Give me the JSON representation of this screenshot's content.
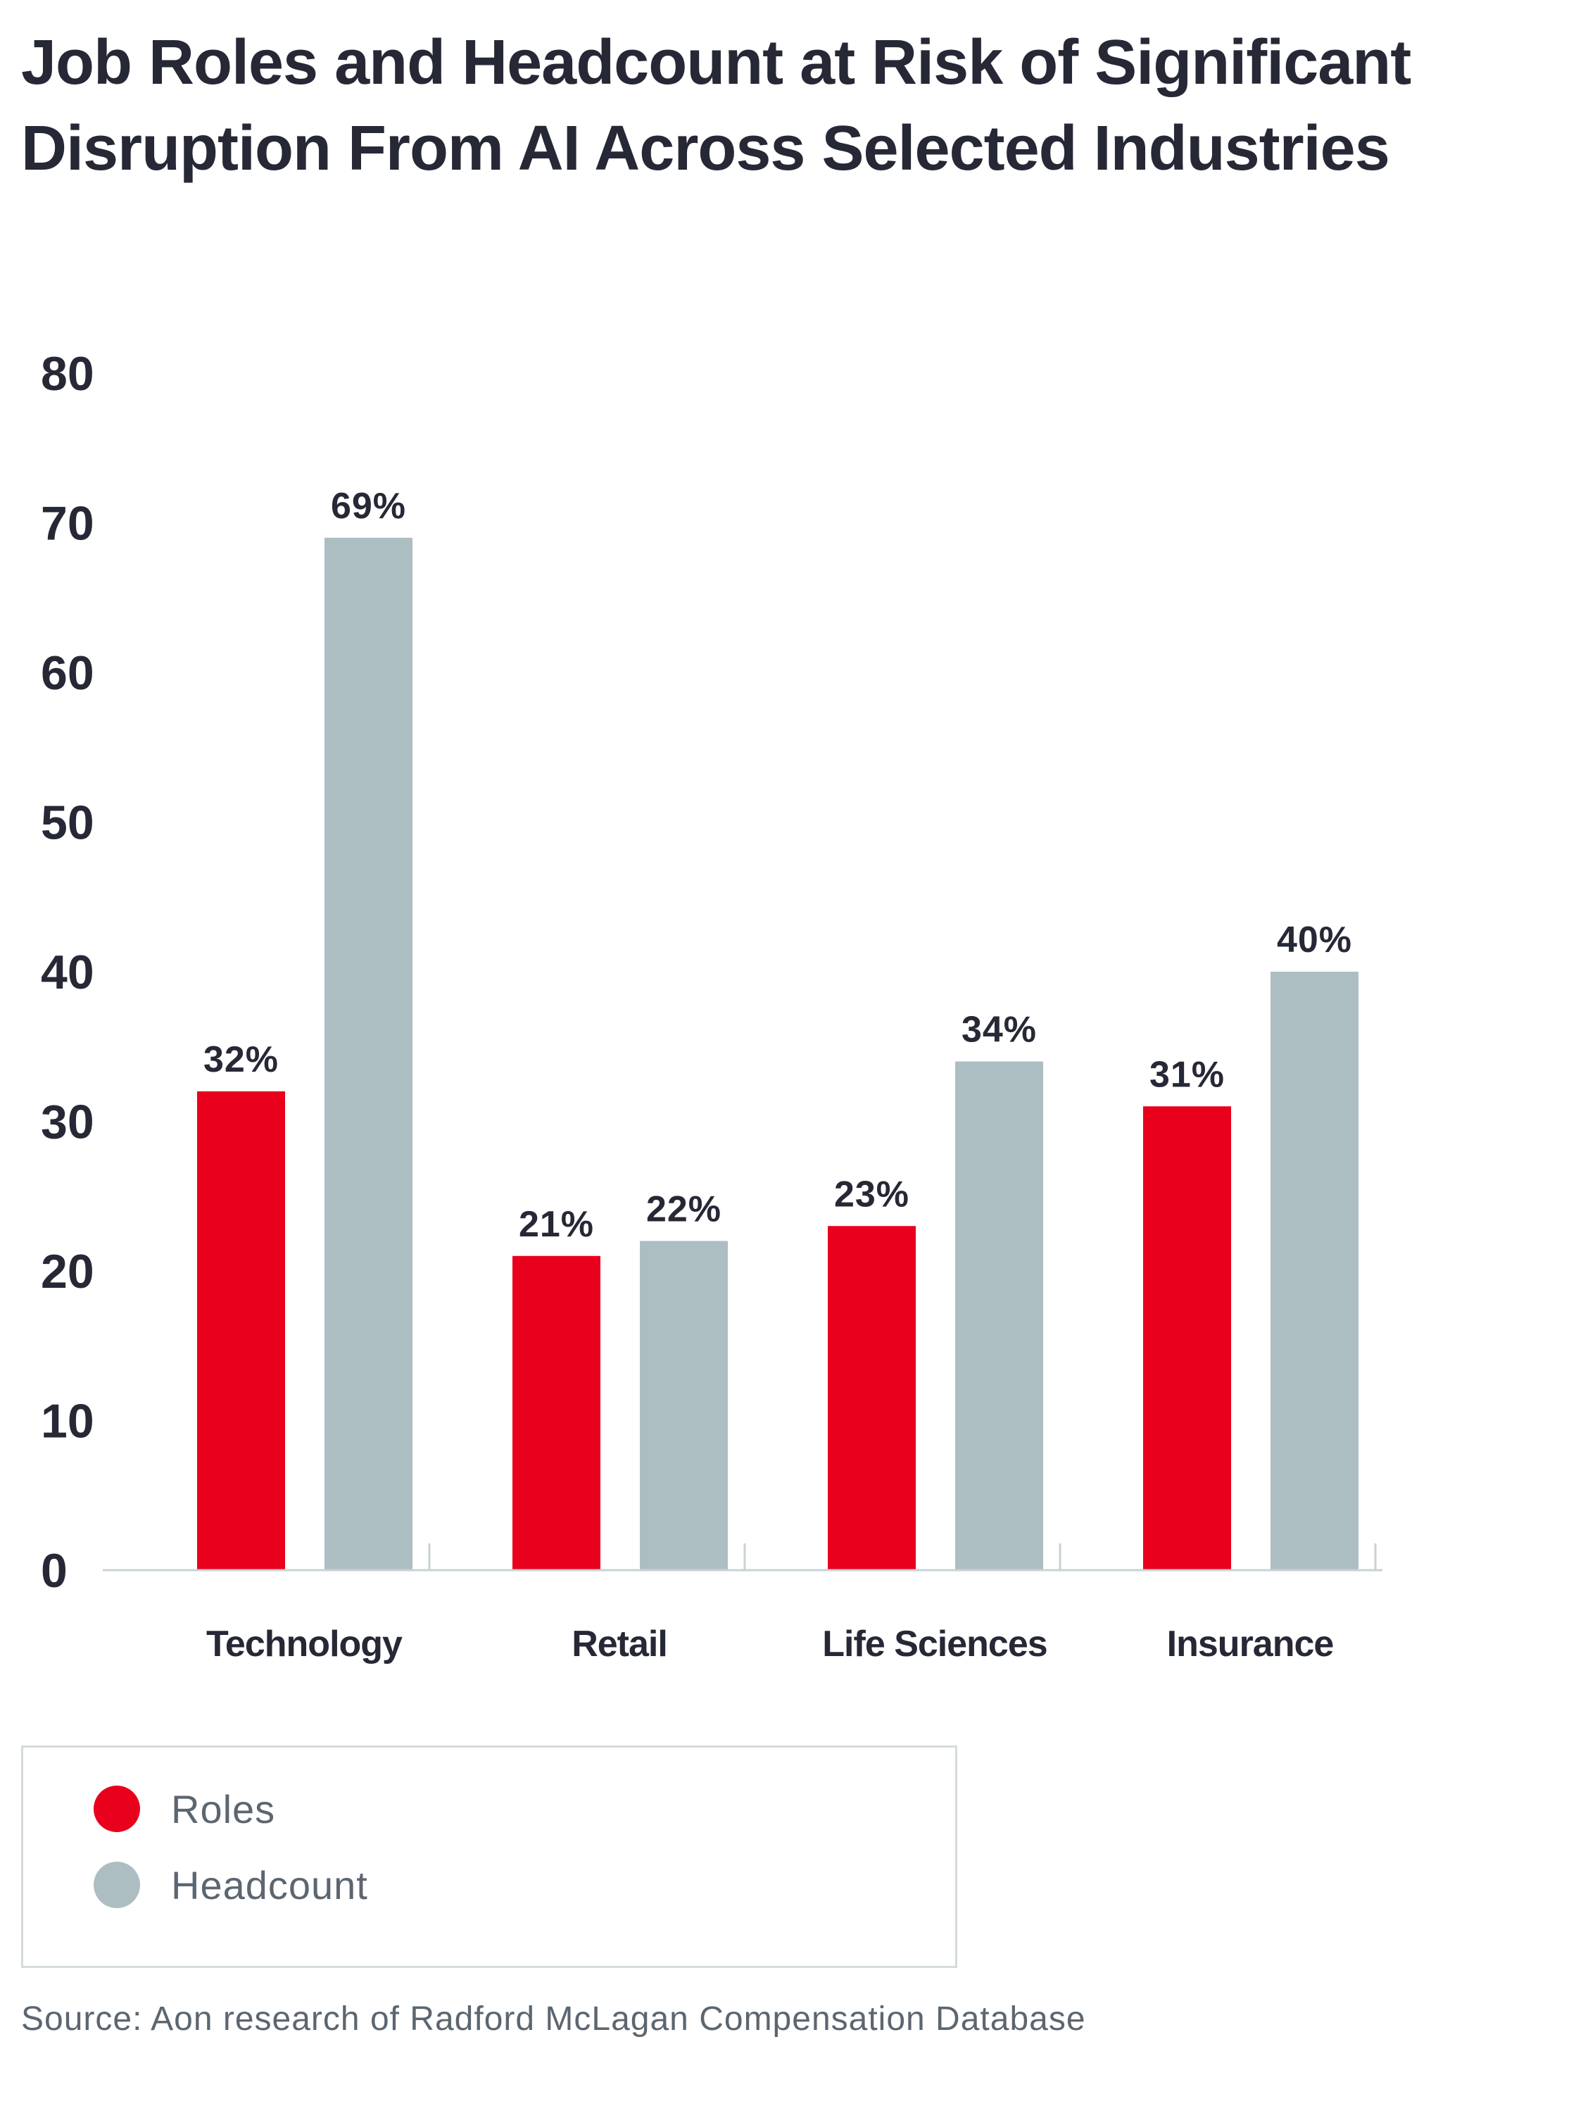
{
  "title": "Job Roles and Headcount at Risk of Significant Disruption From AI Across Selected Industries",
  "source": "Source: Aon research of Radford McLagan Compensation Database",
  "colors": {
    "roles": "#e8001c",
    "headcount": "#adbec2",
    "axis": "#c9d2d5",
    "text": "#262836"
  },
  "legend": {
    "items": [
      {
        "label": "Roles",
        "color": "#e8001c"
      },
      {
        "label": "Headcount",
        "color": "#adbec2"
      }
    ]
  },
  "chart_data": {
    "type": "bar",
    "title": "Job Roles and Headcount at Risk of Significant Disruption From AI Across Selected Industries",
    "categories": [
      "Technology",
      "Retail",
      "Life Sciences",
      "Insurance"
    ],
    "series": [
      {
        "name": "Roles",
        "values": [
          32,
          21,
          23,
          31
        ],
        "labels": [
          "32%",
          "21%",
          "23%",
          "31%"
        ]
      },
      {
        "name": "Headcount",
        "values": [
          69,
          22,
          34,
          40
        ],
        "labels": [
          "69%",
          "22%",
          "34%",
          "40%"
        ]
      }
    ],
    "xlabel": "",
    "ylabel": "",
    "ylim": [
      0,
      80
    ],
    "yticks": [
      "0",
      "10",
      "20",
      "30",
      "40",
      "50",
      "60",
      "70",
      "80"
    ],
    "grid": false,
    "legend_position": "bottom-left"
  }
}
